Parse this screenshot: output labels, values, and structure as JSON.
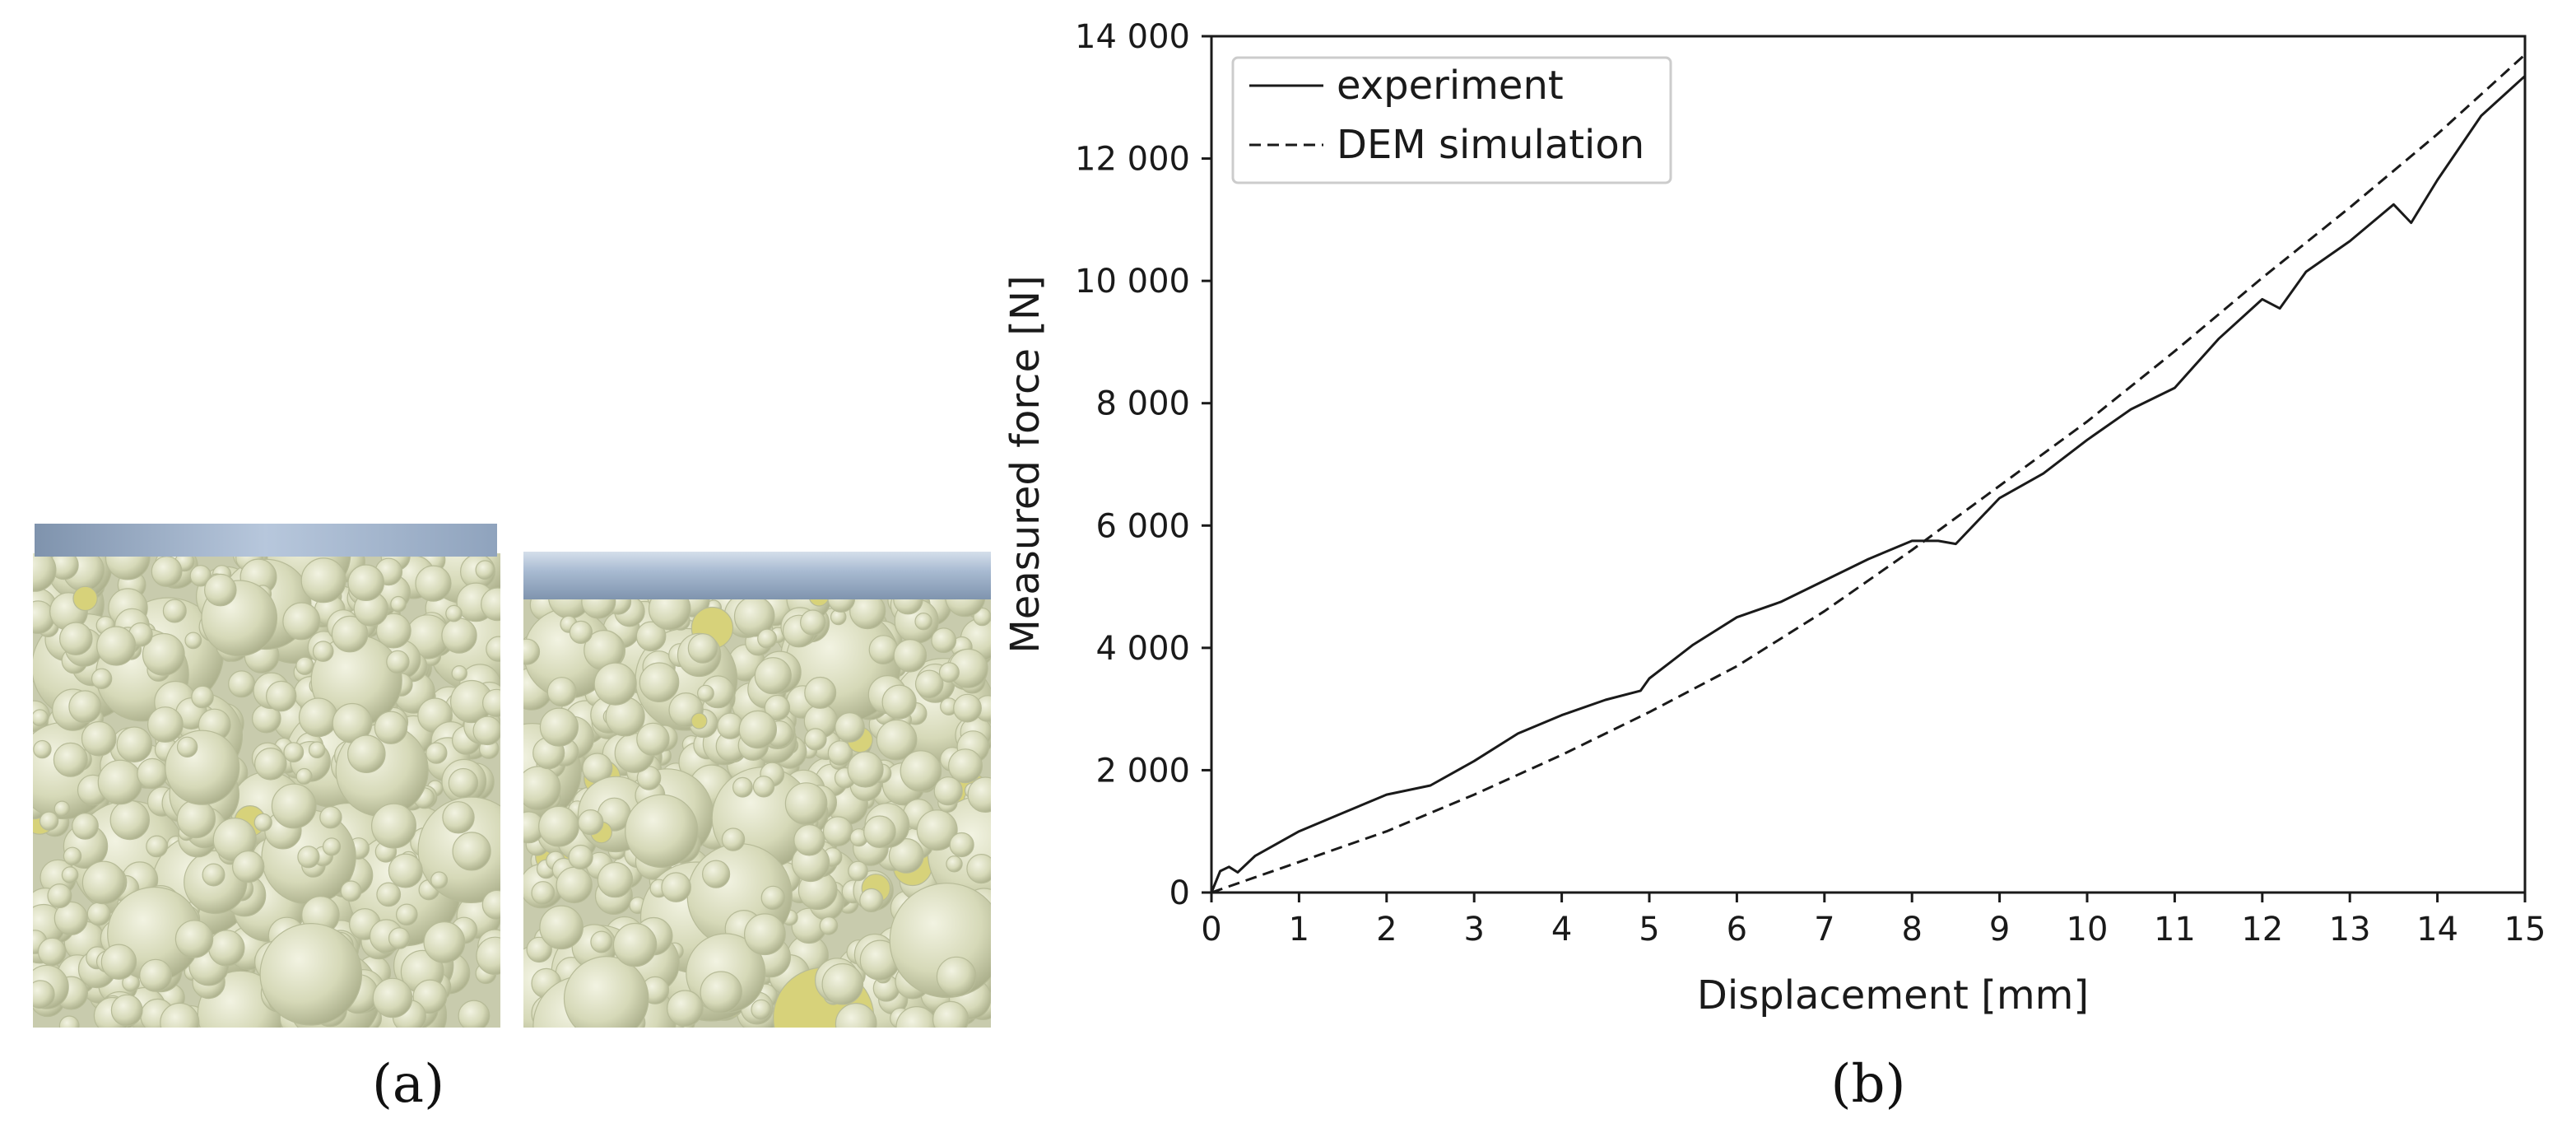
{
  "panels": {
    "a": {
      "label": "(a)"
    },
    "b": {
      "label": "(b)"
    }
  },
  "colors": {
    "particle_fill": "#d9dcbf",
    "particle_edge": "#b7bb98",
    "particle_highlight": "#d7d27a",
    "plate": "#9fb3cc",
    "frame_bg": "#c8cbad",
    "line": "#1a1a1a"
  },
  "chart_data": {
    "type": "line",
    "xlabel": "Displacement [mm]",
    "ylabel": "Measured force [N]",
    "xlim": [
      0,
      15
    ],
    "ylim": [
      0,
      14000
    ],
    "xticks": [
      0,
      1,
      2,
      3,
      4,
      5,
      6,
      7,
      8,
      9,
      10,
      11,
      12,
      13,
      14,
      15
    ],
    "xtick_labels": [
      "0",
      "1",
      "2",
      "3",
      "4",
      "5",
      "6",
      "7",
      "8",
      "9",
      "10",
      "11",
      "12",
      "13",
      "14",
      "15"
    ],
    "yticks": [
      0,
      2000,
      4000,
      6000,
      8000,
      10000,
      12000,
      14000
    ],
    "ytick_labels": [
      "0",
      "2 000",
      "4 000",
      "6 000",
      "8 000",
      "10 000",
      "12 000",
      "14 000"
    ],
    "grid": false,
    "legend_position": "top-left",
    "series": [
      {
        "name": "experiment",
        "style": "solid",
        "x": [
          0,
          0.1,
          0.2,
          0.3,
          0.5,
          1,
          1.5,
          2,
          2.5,
          3,
          3.5,
          4,
          4.5,
          4.9,
          5,
          5.5,
          6,
          6.5,
          7,
          7.5,
          8,
          8.3,
          8.5,
          9,
          9.5,
          10,
          10.5,
          11,
          11.5,
          12,
          12.2,
          12.5,
          13,
          13.5,
          13.7,
          14,
          14.5,
          15
        ],
        "y": [
          0,
          350,
          420,
          330,
          600,
          1000,
          1300,
          1600,
          1750,
          2150,
          2600,
          2900,
          3150,
          3300,
          3500,
          4050,
          4500,
          4750,
          5100,
          5450,
          5750,
          5750,
          5700,
          6450,
          6850,
          7400,
          7900,
          8250,
          9050,
          9700,
          9550,
          10150,
          10650,
          11250,
          10950,
          11650,
          12700,
          13350
        ]
      },
      {
        "name": "DEM simulation",
        "style": "dashed",
        "x": [
          0,
          1,
          2,
          3,
          4,
          5,
          6,
          7,
          8,
          9,
          10,
          11,
          12,
          13,
          14,
          15
        ],
        "y": [
          0,
          500,
          1000,
          1600,
          2250,
          2950,
          3700,
          4600,
          5600,
          6650,
          7700,
          8850,
          10050,
          11200,
          12400,
          13700
        ]
      }
    ]
  }
}
